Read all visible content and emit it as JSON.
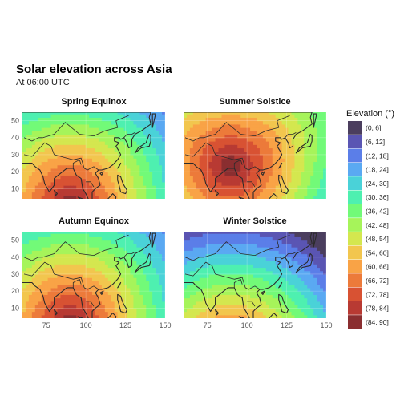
{
  "chart_data": {
    "type": "heatmap",
    "title": "Solar elevation across Asia",
    "subtitle": "At 06:00 UTC",
    "legend_title": "Elevation (°)",
    "legend_placement": "right",
    "grid": true,
    "x_ticks": [
      75,
      100,
      125,
      150
    ],
    "y_ticks": [
      10,
      20,
      30,
      40,
      50
    ],
    "xlim": [
      60,
      150
    ],
    "ylim": [
      4,
      55
    ],
    "bins": [
      {
        "label": "(0, 6]",
        "color": "#4b3e5e"
      },
      {
        "label": "(6, 12]",
        "color": "#5a55b3"
      },
      {
        "label": "(12, 18]",
        "color": "#5b7ee8"
      },
      {
        "label": "(18, 24]",
        "color": "#5aa9f2"
      },
      {
        "label": "(24, 30]",
        "color": "#4ad2d8"
      },
      {
        "label": "(30, 36]",
        "color": "#4ef0b0"
      },
      {
        "label": "(36, 42]",
        "color": "#72fa78"
      },
      {
        "label": "(42, 48]",
        "color": "#a6f45a"
      },
      {
        "label": "(48, 54]",
        "color": "#d4e74f"
      },
      {
        "label": "(54, 60]",
        "color": "#f2c64e"
      },
      {
        "label": "(60, 66]",
        "color": "#f9a346"
      },
      {
        "label": "(66, 72]",
        "color": "#ec7a3a"
      },
      {
        "label": "(72, 78]",
        "color": "#d85233"
      },
      {
        "label": "(78, 84]",
        "color": "#b83a33"
      },
      {
        "label": "(84, 90]",
        "color": "#8a2e30"
      }
    ],
    "panels": [
      {
        "title": "Spring Equinox",
        "subsolar_lon": 90,
        "subsolar_lat": 0
      },
      {
        "title": "Summer Solstice",
        "subsolar_lon": 90,
        "subsolar_lat": 23.44
      },
      {
        "title": "Autumn Equinox",
        "subsolar_lon": 90,
        "subsolar_lat": 0
      },
      {
        "title": "Winter Solstice",
        "subsolar_lon": 90,
        "subsolar_lat": -23.44
      }
    ]
  }
}
